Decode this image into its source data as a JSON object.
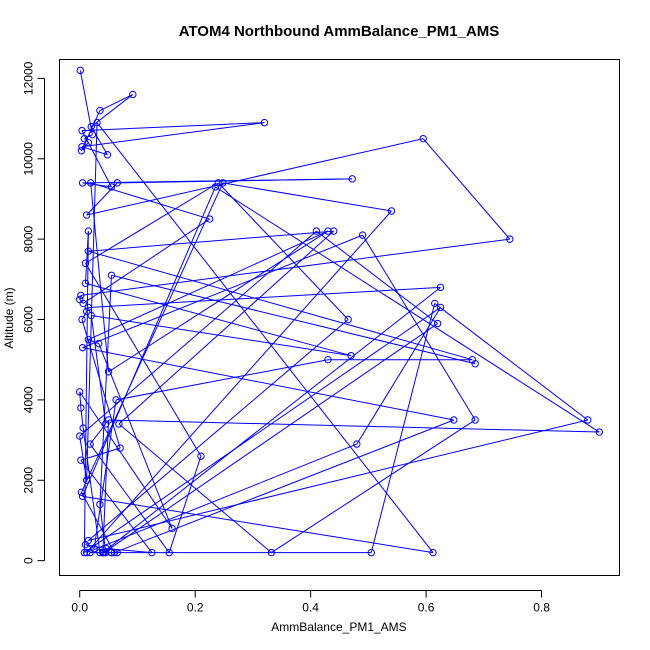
{
  "chart_data": {
    "type": "line",
    "title": "ATOM4 Northbound AmmBalance_PM1_AMS",
    "xlabel": "AmmBalance_PM1_AMS",
    "ylabel": "Altitude (m)",
    "xlim": [
      -0.035,
      0.935
    ],
    "ylim": [
      -370,
      12470
    ],
    "xticks": [
      0.0,
      0.2,
      0.4,
      0.6,
      0.8
    ],
    "xtick_labels": [
      "0.0",
      "0.2",
      "0.4",
      "0.6",
      "0.8"
    ],
    "yticks": [
      0,
      2000,
      4000,
      6000,
      8000,
      10000,
      12000
    ],
    "ytick_labels": [
      "0",
      "2000",
      "4000",
      "6000",
      "8000",
      "10000",
      "12000"
    ],
    "series_color": "#0000ff",
    "marker": "open-circle",
    "grid": false,
    "series": [
      {
        "x": [
          0.001,
          0.022,
          0.008,
          0.015,
          0.003,
          0.035,
          0.092,
          0.02,
          0.048,
          0.004,
          0.32,
          0.004,
          0.055,
          0.005,
          0.472,
          0.065,
          0.012,
          0.595,
          0.745,
          0.002,
          0.0,
          0.006,
          0.225,
          0.019,
          0.05,
          0.43,
          0.015,
          0.033,
          0.16,
          0.0,
          0.002,
          0.006,
          0.035,
          0.018,
          0.055,
          0.065,
          0.055,
          0.04,
          0.625,
          0.015,
          0.012,
          0.004,
          0.07,
          0.002,
          0.125,
          0.046,
          0.01,
          0.025,
          0.063,
          0.43,
          0.68,
          0.015,
          0.44,
          0.068,
          0.332,
          0.685,
          0.49,
          0.005,
          0.648,
          0.06,
          0.003,
          0.248,
          0.54,
          0.012,
          0.48,
          0.625,
          0.008,
          0.015,
          0.01,
          0.47,
          0.02,
          0.045,
          0.018,
          0.155,
          0.21,
          0.01,
          0.24,
          0.465,
          0.015,
          0.88,
          0.615,
          0.505,
          0.042,
          0.62,
          0.41,
          0.0,
          0.012,
          0.03,
          0.612,
          0.005,
          0.235,
          0.9,
          0.05,
          0.04,
          0.045,
          0.035,
          0.055,
          0.685
        ],
        "y": [
          12200,
          10600,
          10500,
          10400,
          10200,
          11200,
          11600,
          10800,
          10100,
          10300,
          10900,
          10700,
          9300,
          9400,
          9500,
          9400,
          8600,
          10500,
          8000,
          6600,
          6500,
          6400,
          8500,
          9400,
          4700,
          8200,
          5500,
          5400,
          800,
          4200,
          3800,
          3300,
          200,
          200,
          200,
          200,
          200,
          200,
          6800,
          6300,
          6200,
          6000,
          2800,
          2500,
          200,
          300,
          400,
          300,
          4000,
          5000,
          5000,
          7700,
          8200,
          3400,
          200,
          3500,
          8100,
          5300,
          3500,
          200,
          1700,
          9400,
          8700,
          200,
          2900,
          6300,
          200,
          8200,
          6900,
          5100,
          6100,
          3400,
          2900,
          200,
          2600,
          7400,
          9400,
          6000,
          500,
          3500,
          6400,
          200,
          200,
          5900,
          8200,
          3100,
          2000,
          10900,
          200,
          1600,
          9300,
          3200,
          3500,
          200,
          200,
          1400,
          7100,
          4900
        ]
      }
    ]
  }
}
